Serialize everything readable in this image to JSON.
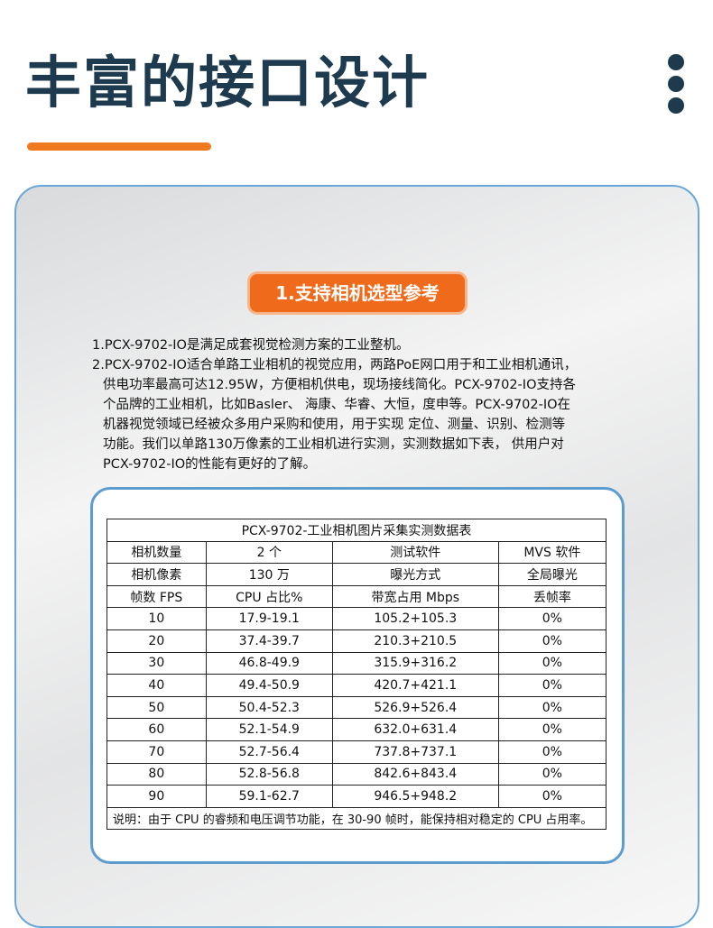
{
  "header": {
    "title": "丰富的接口设计"
  },
  "section": {
    "badge": "1.支持相机选型参考",
    "paragraphs": [
      [
        "1.PCX-9702-IO是满足成套视觉检测方案的工业整机。"
      ],
      [
        "2.PCX-9702-IO适合单路工业相机的视觉应用，两路PoE网口用于和工业相机通讯，",
        "供电功率最高可达12.95W，方便相机供电，现场接线简化。PCX-9702-IO支持各",
        "个品牌的工业相机，比如Basler、 海康、华睿、大恒，度申等。PCX-9702-IO在",
        "机器视觉领域已经被众多用户采购和使用，用于实现 定位、测量、识别、检测等",
        "功能。我们以单路130万像素的工业相机进行实测，实测数据如下表， 供用户对",
        "PCX-9702-IO的性能有更好的了解。"
      ]
    ]
  },
  "table": {
    "title": "PCX-9702-工业相机图片采集实测数据表",
    "header_rows": [
      [
        "相机数量",
        "2 个",
        "测试软件",
        "MVS 软件"
      ],
      [
        "相机像素",
        "130 万",
        "曝光方式",
        "全局曝光"
      ],
      [
        "帧数 FPS",
        "CPU 占比%",
        "带宽占用 Mbps",
        "丢帧率"
      ]
    ],
    "rows": [
      [
        "10",
        "17.9-19.1",
        "105.2+105.3",
        "0%"
      ],
      [
        "20",
        "37.4-39.7",
        "210.3+210.5",
        "0%"
      ],
      [
        "30",
        "46.8-49.9",
        "315.9+316.2",
        "0%"
      ],
      [
        "40",
        "49.4-50.9",
        "420.7+421.1",
        "0%"
      ],
      [
        "50",
        "50.4-52.3",
        "526.9+526.4",
        "0%"
      ],
      [
        "60",
        "52.1-54.9",
        "632.0+631.4",
        "0%"
      ],
      [
        "70",
        "52.7-56.4",
        "737.8+737.1",
        "0%"
      ],
      [
        "80",
        "52.8-56.8",
        "842.6+843.4",
        "0%"
      ],
      [
        "90",
        "59.1-62.7",
        "946.5+948.2",
        "0%"
      ]
    ],
    "note": "说明：由于 CPU 的睿频和电压调节功能，在 30-90 帧时，能保持相对稳定的 CPU 占用率。"
  }
}
